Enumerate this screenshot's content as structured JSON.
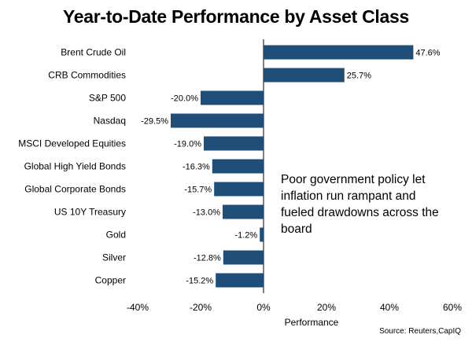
{
  "chart_data": {
    "type": "bar",
    "orientation": "horizontal",
    "title": "Year-to-Date Performance by Asset Class",
    "xlabel": "Performance",
    "ylabel": "",
    "xlim": [
      -40,
      60
    ],
    "xticks": [
      "-40%",
      "-20%",
      "0%",
      "20%",
      "40%",
      "60%"
    ],
    "grid": false,
    "bar_color": "#1f4e79",
    "categories": [
      "Brent Crude Oil",
      "CRB Commodities",
      "S&P 500",
      "Nasdaq",
      "MSCI Developed Equities",
      "Global High Yield Bonds",
      "Global Corporate Bonds",
      "US 10Y Treasury",
      "Gold",
      "Silver",
      "Copper"
    ],
    "values": [
      47.6,
      25.7,
      -20.0,
      -29.5,
      -19.0,
      -16.3,
      -15.7,
      -13.0,
      -1.2,
      -12.8,
      -15.2
    ],
    "data_labels": [
      "47.6%",
      "25.7%",
      "-20.0%",
      "-29.5%",
      "-19.0%",
      "-16.3%",
      "-15.7%",
      "-13.0%",
      "-1.2%",
      "-12.8%",
      "-15.2%"
    ],
    "annotation": "Poor government policy let inflation run rampant and fueled drawdowns across the board",
    "source": "Source: Reuters,CapIQ"
  }
}
